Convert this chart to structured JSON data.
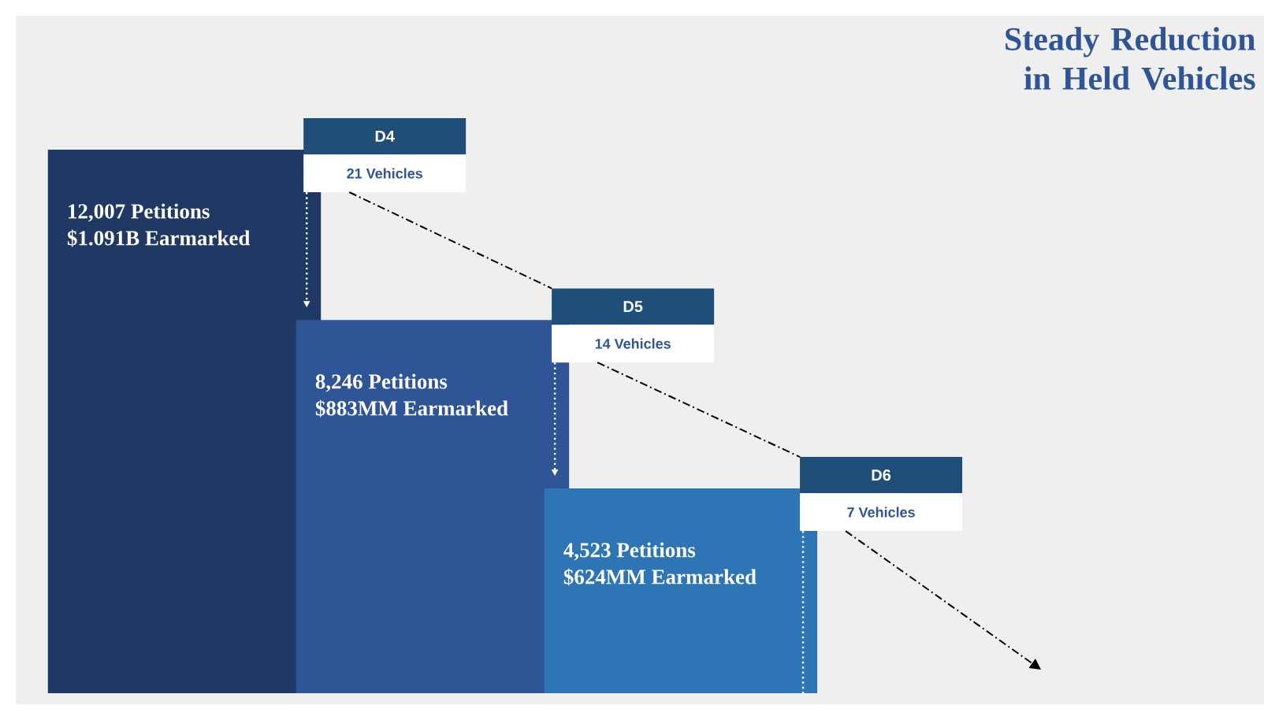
{
  "chart_data": {
    "type": "bar",
    "title": "Steady Reduction in Held Vehicles",
    "categories": [
      null,
      null,
      null
    ],
    "values": [
      12007,
      8246,
      4523
    ],
    "colors": [
      "#203864",
      "#2f5597",
      "#2e75b6"
    ],
    "value_labels": [
      "12,007 Petitions",
      "8,246 Petitions",
      "4,523 Petitions"
    ],
    "annotations": [
      "$1.091B Earmarked",
      "$883MM Earmarked",
      "$624MM Earmarked",
      "D4",
      "D5",
      "D6",
      "21 Vehicles",
      "14 Vehicles",
      "7 Vehicles"
    ]
  }
}
